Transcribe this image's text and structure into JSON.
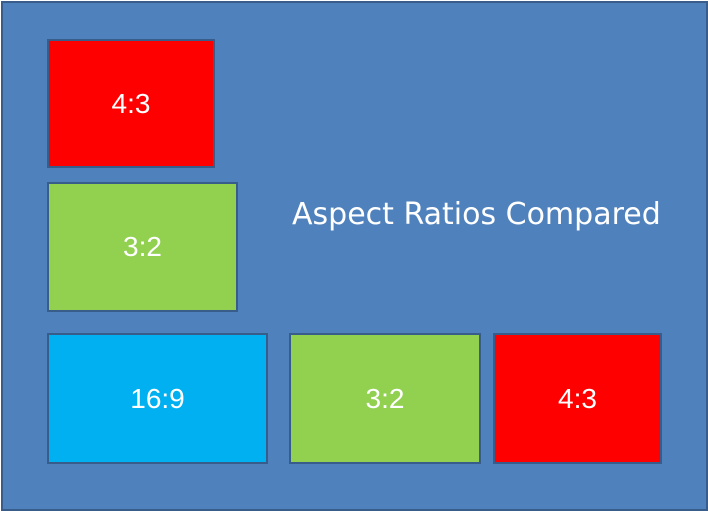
{
  "title": "Aspect Ratios Compared",
  "boxes": [
    {
      "label": "4:3",
      "color": "#ff0000"
    },
    {
      "label": "3:2",
      "color": "#92d050"
    },
    {
      "label": "16:9",
      "color": "#00b0f0"
    },
    {
      "label": "3:2",
      "color": "#92d050"
    },
    {
      "label": "4:3",
      "color": "#ff0000"
    }
  ],
  "colors": {
    "background": "#4f81bd",
    "border": "#385d8a",
    "text": "#ffffff"
  }
}
